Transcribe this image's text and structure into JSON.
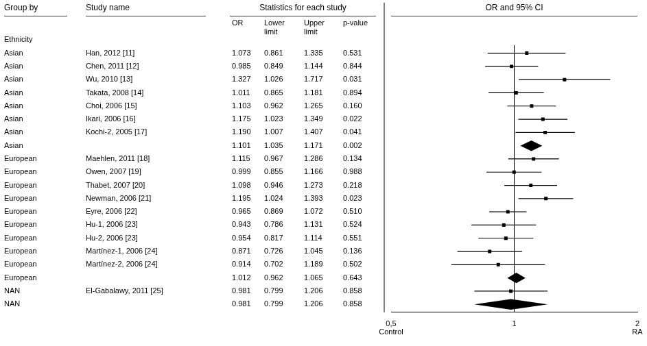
{
  "chart_data": {
    "type": "forest",
    "headers": {
      "group": "Group by",
      "study": "Study name",
      "stats": "Statistics for each study",
      "forest": "OR and 95% CI",
      "subgroup": "Ethnicity"
    },
    "columns": [
      [
        "OR"
      ],
      [
        "Lower",
        "limit"
      ],
      [
        "Upper",
        "limit"
      ],
      [
        "p-value"
      ]
    ],
    "groups": [
      "Asian",
      "Asian",
      "Asian",
      "Asian",
      "Asian",
      "Asian",
      "Asian",
      "Asian",
      "European",
      "European",
      "European",
      "European",
      "European",
      "European",
      "European",
      "European",
      "European",
      "European",
      "NAN",
      "NAN"
    ],
    "categories": [
      "Han, 2012 [11]",
      "Chen, 2011 [12]",
      "Wu, 2010 [13]",
      "Takata, 2008 [14]",
      "Choi, 2006 [15]",
      "Ikari, 2006 [16]",
      "Kochi-2, 2005 [17]",
      null,
      "Maehlen, 2011 [18]",
      "Owen, 2007 [19]",
      "Thabet, 2007 [20]",
      "Newman, 2006 [21]",
      "Eyre, 2006 [22]",
      "Hu-1, 2006 [23]",
      "Hu-2, 2006 [23]",
      "Martínez-1, 2006 [24]",
      "Martínez-2, 2006 [24]",
      null,
      "El-Gabalawy, 2011 [25]",
      null
    ],
    "values": [
      1.073,
      0.985,
      1.327,
      1.011,
      1.103,
      1.175,
      1.19,
      1.101,
      1.115,
      0.999,
      1.098,
      1.195,
      0.965,
      0.943,
      0.954,
      0.871,
      0.914,
      1.012,
      0.981,
      0.981
    ],
    "value_labels": [
      "1.073",
      "0.985",
      "1.327",
      "1.011",
      "1.103",
      "1.175",
      "1.190",
      "1.101",
      "1.115",
      "0.999",
      "1.098",
      "1.195",
      "0.965",
      "0.943",
      "0.954",
      "0.871",
      "0.914",
      "1.012",
      "0.981",
      "0.981"
    ],
    "lower": [
      0.861,
      0.849,
      1.026,
      0.865,
      0.962,
      1.023,
      1.007,
      1.035,
      0.967,
      0.855,
      0.946,
      1.024,
      0.869,
      0.786,
      0.817,
      0.726,
      0.702,
      0.962,
      0.799,
      0.799
    ],
    "lower_labels": [
      "0.861",
      "0.849",
      "1.026",
      "0.865",
      "0.962",
      "1.023",
      "1.007",
      "1.035",
      "0.967",
      "0.855",
      "0.946",
      "1.024",
      "0.869",
      "0.786",
      "0.817",
      "0.726",
      "0.702",
      "0.962",
      "0.799",
      "0.799"
    ],
    "upper": [
      1.335,
      1.144,
      1.717,
      1.181,
      1.265,
      1.349,
      1.407,
      1.171,
      1.286,
      1.166,
      1.273,
      1.393,
      1.072,
      1.131,
      1.114,
      1.045,
      1.189,
      1.065,
      1.206,
      1.206
    ],
    "upper_labels": [
      "1.335",
      "1.144",
      "1.717",
      "1.181",
      "1.265",
      "1.349",
      "1.407",
      "1.171",
      "1.286",
      "1.166",
      "1.273",
      "1.393",
      "1.072",
      "1.131",
      "1.114",
      "1.045",
      "1.189",
      "1.065",
      "1.206",
      "1.206"
    ],
    "pvalues": [
      0.531,
      0.844,
      0.031,
      0.894,
      0.16,
      0.022,
      0.041,
      0.002,
      0.134,
      0.988,
      0.218,
      0.023,
      0.51,
      0.524,
      0.551,
      0.136,
      0.502,
      0.643,
      0.858,
      0.858
    ],
    "pvalue_labels": [
      "0.531",
      "0.844",
      "0.031",
      "0.894",
      "0.160",
      "0.022",
      "0.041",
      "0.002",
      "0.134",
      "0.988",
      "0.218",
      "0.023",
      "0.510",
      "0.524",
      "0.551",
      "0.136",
      "0.502",
      "0.643",
      "0.858",
      "0.858"
    ],
    "is_summary": [
      false,
      false,
      false,
      false,
      false,
      false,
      false,
      true,
      false,
      false,
      false,
      false,
      false,
      false,
      false,
      false,
      false,
      true,
      false,
      true
    ],
    "color": "#000000",
    "log": "x",
    "xlim": [
      0.5,
      2.0
    ],
    "xticks": [
      {
        "value": 0.5,
        "label": "0,5"
      },
      1,
      2
    ],
    "reference_line": 1,
    "annotations": [
      {
        "text": "Control",
        "x": 0.5
      },
      {
        "text": "RA",
        "x": 2.0
      }
    ],
    "grid": false,
    "tick_labels": "x"
  }
}
